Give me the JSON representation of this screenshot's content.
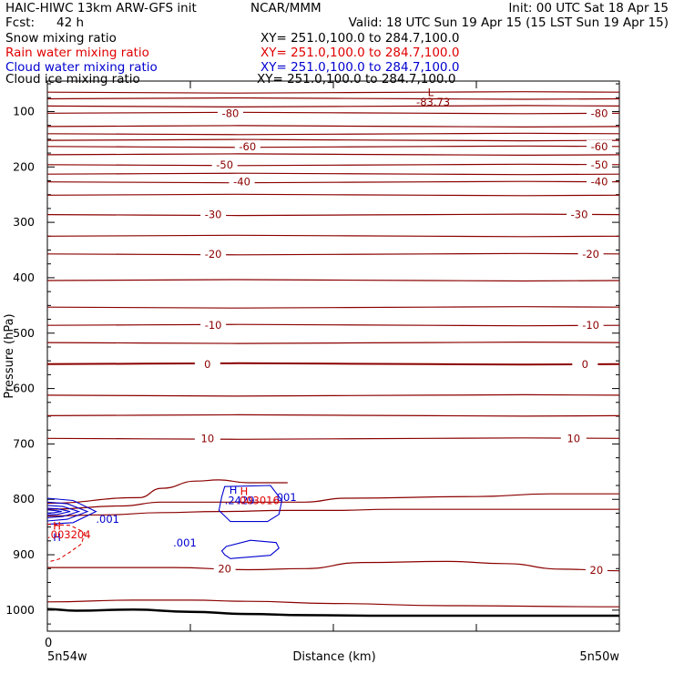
{
  "header": {
    "title": "HAIC-HIWC 13km ARW-GFS init",
    "org": "NCAR/MMM",
    "init": "Init: 00 UTC Sat 18 Apr 15",
    "fcst_label": "Fcst:",
    "fcst_value": "42 h",
    "valid": "Valid: 18 UTC Sun 19 Apr 15 (15 LST Sun 19 Apr 15)"
  },
  "fields": [
    {
      "name": "Snow mixing ratio",
      "xy": "XY= 251.0,100.0 to 284.7,100.0",
      "color": "#000000"
    },
    {
      "name": "Rain water mixing ratio",
      "xy": "XY= 251.0,100.0 to 284.7,100.0",
      "color": "#e00000"
    },
    {
      "name": "Cloud water mixing ratio",
      "xy": "XY= 251.0,100.0 to 284.7,100.0",
      "color": "#0000d0"
    },
    {
      "name": "Cloud ice mixing ratio",
      "xy": "XY= 251.0,100.0 to 284.7,100.0",
      "color": "#000000"
    }
  ],
  "chart_data": {
    "type": "line",
    "xlabel": "Distance (km)",
    "ylabel": "Pressure (hPa)",
    "x_origin_label": "0",
    "x_left_label": "5n54w",
    "x_right_label": "5n50w",
    "y_ticks": [
      100,
      200,
      300,
      400,
      500,
      600,
      700,
      800,
      900,
      1000
    ],
    "ylim": [
      45,
      1038
    ],
    "y_scale": "linear, inverted",
    "x_minor_ticks": 4,
    "temperature_color": "#8b0000",
    "temperature_isotherms": [
      {
        "t": "-80",
        "p": 103,
        "labels": [
          0.32,
          0.965
        ]
      },
      {
        "t": "",
        "p": 65
      },
      {
        "t": "",
        "p": 77
      },
      {
        "t": "",
        "p": 90
      },
      {
        "t": "",
        "p": 127
      },
      {
        "t": "",
        "p": 140
      },
      {
        "t": "",
        "p": 152
      },
      {
        "t": "-60",
        "p": 163,
        "labels": [
          0.35,
          0.965
        ]
      },
      {
        "t": "",
        "p": 178
      },
      {
        "t": "-50",
        "p": 196,
        "labels": [
          0.31,
          0.965
        ]
      },
      {
        "t": "",
        "p": 213
      },
      {
        "t": "-40",
        "p": 227,
        "labels": [
          0.34,
          0.965
        ]
      },
      {
        "t": "",
        "p": 251
      },
      {
        "t": "-30",
        "p": 286,
        "labels": [
          0.29,
          0.93
        ]
      },
      {
        "t": "",
        "p": 325
      },
      {
        "t": "-20",
        "p": 357,
        "labels": [
          0.29,
          0.95
        ]
      },
      {
        "t": "",
        "p": 405
      },
      {
        "t": "",
        "p": 453
      },
      {
        "t": "-10",
        "p": 486,
        "labels": [
          0.29,
          0.95
        ]
      },
      {
        "t": "",
        "p": 517
      },
      {
        "t": "0",
        "p": 556,
        "labels": [
          0.28,
          0.94
        ],
        "bold": true
      },
      {
        "t": "",
        "p": 612
      },
      {
        "t": "",
        "p": 649
      },
      {
        "t": "10",
        "p": 690,
        "labels": [
          0.28,
          0.92
        ]
      }
    ],
    "lower_isotherms": [
      {
        "id": "iso-770",
        "x": [
          0,
          0.16,
          0.2,
          0.26,
          0.3,
          0.35,
          0.41,
          0.42
        ],
        "p": [
          807,
          797,
          780,
          767,
          765,
          770,
          770,
          770
        ]
      },
      {
        "id": "iso-790",
        "x": [
          0,
          0.13,
          0.2,
          0.3,
          0.45,
          0.52,
          0.75,
          0.88,
          1.0
        ],
        "p": [
          818,
          812,
          805,
          805,
          805,
          798,
          795,
          790,
          790
        ]
      },
      {
        "id": "iso-830",
        "x": [
          0,
          0.1,
          0.2,
          0.3,
          0.42,
          0.5,
          0.6,
          0.75,
          1.0
        ],
        "p": [
          830,
          828,
          824,
          822,
          820,
          820,
          818,
          818,
          818
        ]
      },
      {
        "id": "iso-20",
        "x": [
          0,
          0.1,
          0.22,
          0.35,
          0.45,
          0.55,
          0.7,
          0.8,
          0.9,
          1.0
        ],
        "p": [
          923,
          923,
          923,
          927,
          925,
          914,
          912,
          916,
          926,
          929
        ],
        "label": "20",
        "labels": [
          0.31,
          0.96
        ]
      },
      {
        "id": "iso-985",
        "x": [
          0,
          0.15,
          0.25,
          0.35,
          0.5,
          0.7,
          1.0
        ],
        "p": [
          985,
          982,
          982,
          984,
          988,
          992,
          994
        ]
      },
      {
        "id": "surface",
        "x": [
          0,
          0.05,
          0.15,
          0.25,
          0.35,
          0.45,
          0.6,
          0.8,
          1.0
        ],
        "p": [
          998,
          1001,
          999,
          1003,
          1007,
          1009,
          1010,
          1010,
          1010
        ],
        "bold": true
      }
    ],
    "cloud_water": [
      {
        "id": "cw-left-1",
        "x": [
          0,
          0.045,
          0.085,
          0.045,
          0
        ],
        "p": [
          798,
          802,
          822,
          842,
          845
        ]
      },
      {
        "id": "cw-left-2",
        "x": [
          0,
          0.035,
          0.07,
          0.035,
          0
        ],
        "p": [
          805,
          808,
          822,
          836,
          839
        ]
      },
      {
        "id": "cw-left-3",
        "x": [
          0,
          0.027,
          0.055,
          0.027,
          0
        ],
        "p": [
          811,
          813,
          822,
          831,
          833
        ]
      },
      {
        "id": "cw-left-4",
        "x": [
          0,
          0.018,
          0.04,
          0.018,
          0
        ],
        "p": [
          816,
          817,
          822,
          827,
          828
        ]
      },
      {
        "id": "cw-left-5",
        "x": [
          0,
          0.012,
          0.025,
          0.012,
          0
        ],
        "p": [
          819,
          820,
          822,
          824,
          825
        ]
      },
      {
        "id": "cw-mid",
        "x": [
          0.313,
          0.355,
          0.4,
          0.405,
          0.39,
          0.32,
          0.31,
          0.305
        ],
        "p": [
          885,
          874,
          878,
          888,
          901,
          907,
          900,
          893
        ]
      },
      {
        "id": "cw-right",
        "x": [
          0.31,
          0.39,
          0.41,
          0.405,
          0.385,
          0.32,
          0.3,
          0.305
        ],
        "p": [
          777,
          775,
          802,
          827,
          840,
          840,
          820,
          795
        ]
      }
    ],
    "cloud_water_labels": [
      {
        "text": ".001",
        "x": 0.085,
        "p": 842
      },
      {
        "text": ".001",
        "x": 0.22,
        "p": 885
      },
      {
        "text": ".001",
        "x": 0.395,
        "p": 803
      },
      {
        "text": "H",
        "x": 0.01,
        "p": 875
      },
      {
        "text": "H",
        "x": 0.318,
        "p": 790
      },
      {
        "text": ".2429",
        "x": 0.31,
        "p": 809
      }
    ],
    "rain_water": [
      {
        "id": "rw-left",
        "x": [
          0,
          0.04,
          0.065,
          0.06,
          0.04,
          0.02,
          0.005,
          0
        ],
        "p": [
          845,
          847,
          860,
          880,
          895,
          908,
          912,
          912
        ]
      }
    ],
    "rain_water_labels": [
      {
        "text": "H",
        "x": 0.01,
        "p": 855
      },
      {
        "text": ".003204",
        "x": 0.0,
        "p": 870
      },
      {
        "text": "H",
        "x": 0.337,
        "p": 792
      },
      {
        "text": ".003016",
        "x": 0.33,
        "p": 809
      }
    ],
    "extremum_labels": [
      {
        "text": "L",
        "x": 0.665,
        "p": 72
      },
      {
        "text": "-83.73",
        "x": 0.645,
        "p": 89
      }
    ]
  }
}
